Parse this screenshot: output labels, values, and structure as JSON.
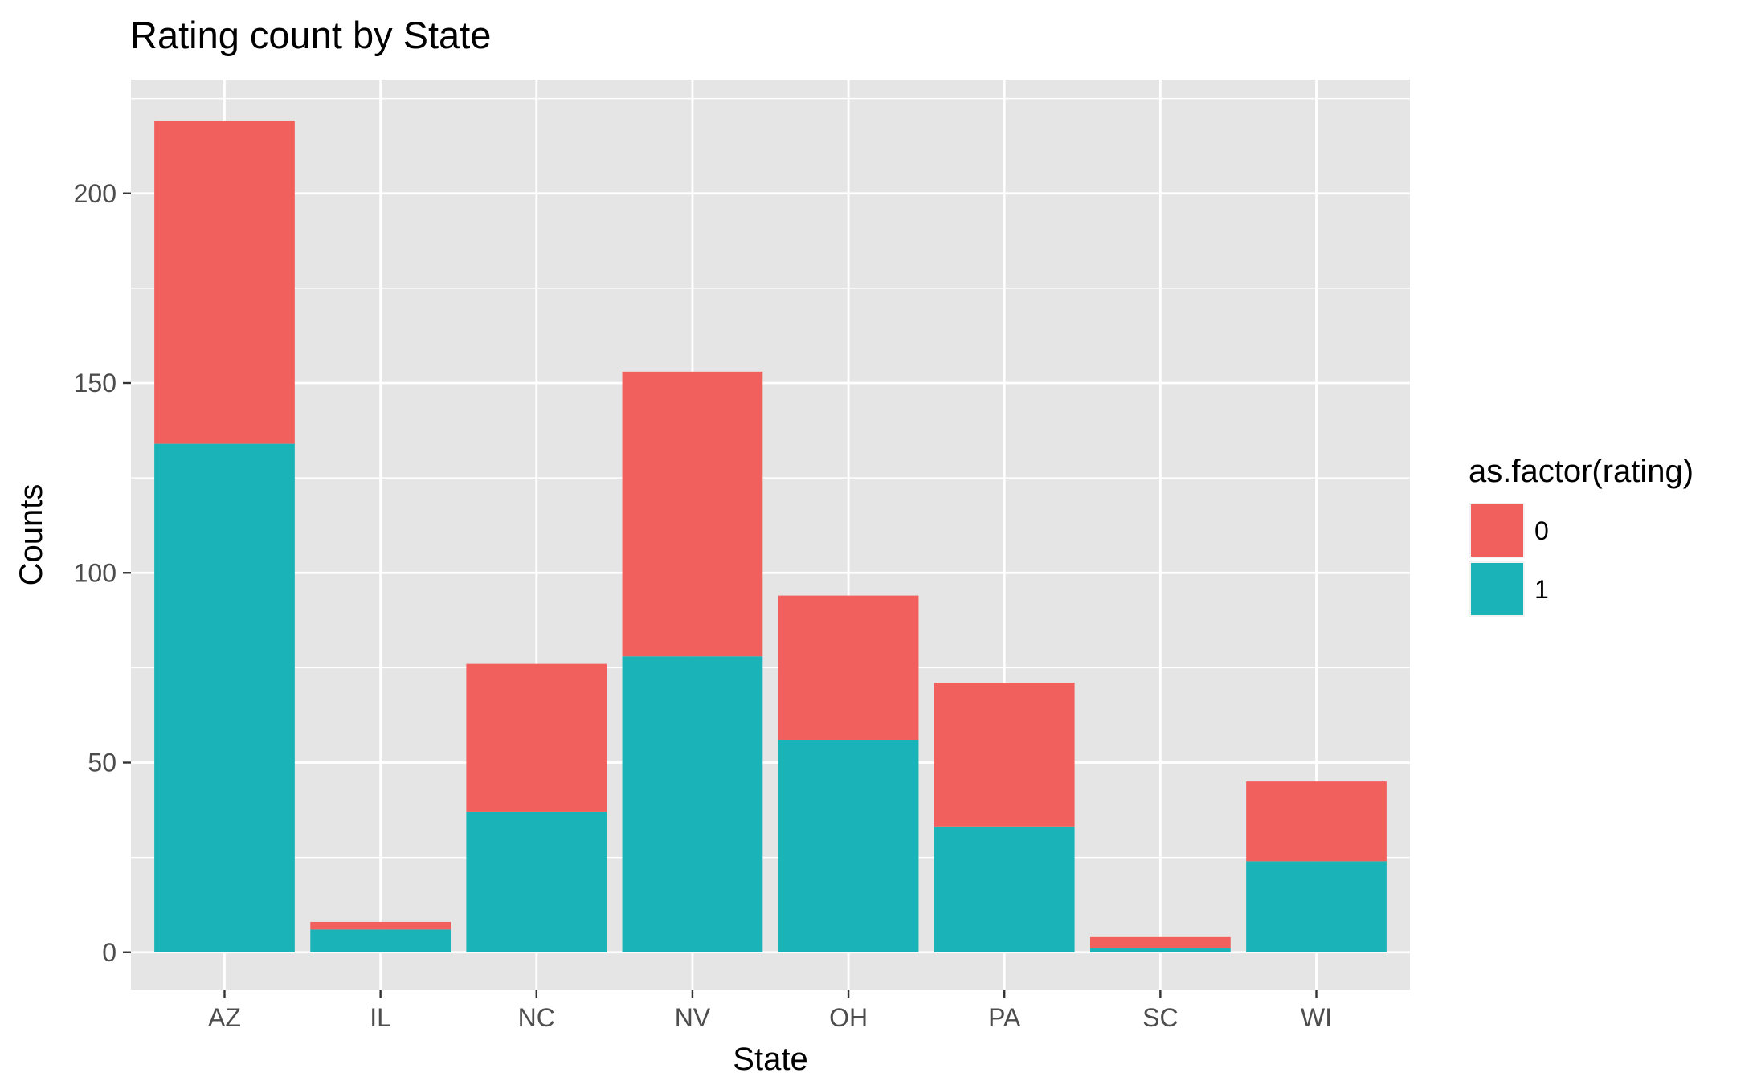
{
  "chart_data": {
    "type": "bar",
    "stacked": true,
    "title": "Rating count by State",
    "xlabel": "State",
    "ylabel": "Counts",
    "categories": [
      "AZ",
      "IL",
      "NC",
      "NV",
      "OH",
      "PA",
      "SC",
      "WI"
    ],
    "series": [
      {
        "name": "0",
        "color": "#F2605D",
        "values": [
          85,
          2,
          39,
          75,
          38,
          38,
          3,
          21
        ]
      },
      {
        "name": "1",
        "color": "#19B3B8",
        "values": [
          134,
          6,
          37,
          78,
          56,
          33,
          1,
          24
        ]
      }
    ],
    "yticks": [
      0,
      50,
      100,
      150,
      200
    ],
    "ylim": [
      -10,
      230
    ],
    "grid": true,
    "legend": {
      "title": "as.factor(rating)",
      "position": "right"
    },
    "panel_color": "#E5E5E5",
    "grid_color": "#FFFFFF"
  }
}
